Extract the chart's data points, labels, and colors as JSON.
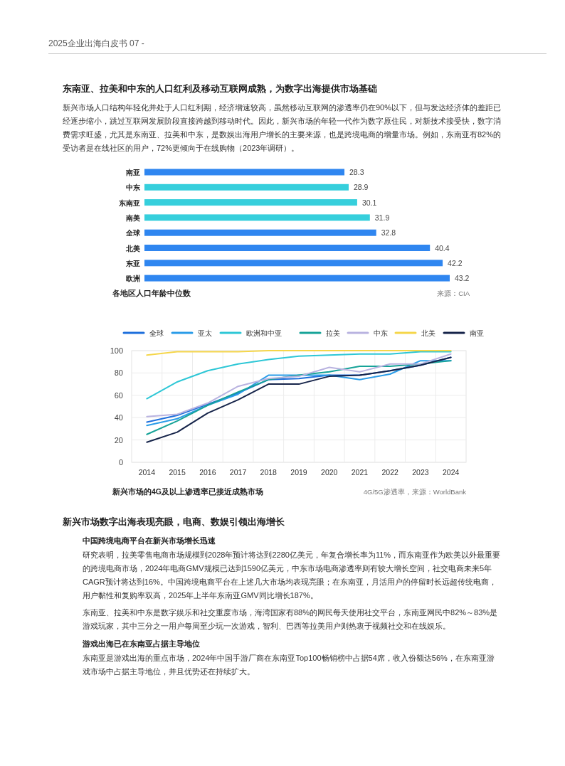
{
  "chart_data": [
    {
      "type": "other",
      "annotations": [
        "2025企业出海白皮书    07 -"
      ]
    },
    {
      "type": "other",
      "title": "东南亚、拉美和中东的人口红利及移动互联网成熟，为数字出海提供市场基础",
      "annotations": [
        "新兴市场人口结构年轻化并处于人口红利期，经济增速较高，虽然移动互联网的渗透率仍在90%以下，但与发达经济体的差距已经逐步缩小，跳过互联网发展阶段直接跨越到移动时代。因此，新兴市场的年轻一代作为数字原住民，对新技术接受快，数字消费需求旺盛，尤其是东南亚、拉美和中东，是数娱出海用户增长的主要来源，也是跨境电商的增量市场。例如，东南亚有82%的受访者是在线社区的用户，72%更倾向于在线购物（2023年调研）。"
      ]
    },
    {
      "type": "bar",
      "orientation": "horizontal",
      "title": "各地区人口年龄中位数",
      "annotations": [
        "来源：CIA"
      ],
      "categories": [
        "南亚",
        "中东",
        "东南亚",
        "南美",
        "全球",
        "北美",
        "东亚",
        "欧洲"
      ],
      "values": [
        28.3,
        28.9,
        30.1,
        31.9,
        32.8,
        40.4,
        42.2,
        43.2
      ],
      "colors": [
        "#2f86f0",
        "#36cfdc",
        "#36cfdc",
        "#36cfdc",
        "#2f86f0",
        "#2f86f0",
        "#2f86f0",
        "#2f86f0"
      ],
      "data_labels": true
    },
    {
      "type": "line",
      "title": "新兴市场的4G及以上渗透率已接近成熟市场",
      "annotations": [
        "4G/5G渗透率，来源：WorldBank"
      ],
      "categories": [
        "2014",
        "2015",
        "2016",
        "2017",
        "2018",
        "2019",
        "2020",
        "2021",
        "2022",
        "2023",
        "2024"
      ],
      "ylim": [
        0,
        100
      ],
      "yticks": [
        0,
        20,
        40,
        60,
        80,
        100
      ],
      "grid": true,
      "legend": "top",
      "series": [
        {
          "name": "全球",
          "color": "#1e6fdc",
          "values": [
            36,
            42,
            52,
            62,
            74,
            75,
            78,
            78,
            82,
            87,
            94
          ]
        },
        {
          "name": "亚太",
          "color": "#2a9ce8",
          "values": [
            33,
            39,
            51,
            61,
            78,
            78,
            78,
            74,
            79,
            91,
            91
          ]
        },
        {
          "name": "欧洲和中亚",
          "color": "#2ec7d6",
          "values": [
            57,
            72,
            82,
            88,
            92,
            95,
            96,
            97,
            97,
            99,
            99
          ]
        },
        {
          "name": "拉美",
          "color": "#17a398",
          "values": [
            25,
            37,
            51,
            63,
            74,
            78,
            81,
            86,
            86,
            88,
            91
          ]
        },
        {
          "name": "中东",
          "color": "#b9b3e0",
          "values": [
            41,
            43,
            53,
            68,
            75,
            77,
            85,
            81,
            88,
            88,
            97
          ]
        },
        {
          "name": "北美",
          "color": "#f5d64a",
          "values": [
            96,
            99,
            99,
            99,
            100,
            100,
            100,
            100,
            100,
            100,
            100
          ]
        },
        {
          "name": "南亚",
          "color": "#16244a",
          "values": [
            18,
            27,
            44,
            56,
            70,
            70,
            77,
            78,
            82,
            87,
            94
          ]
        }
      ]
    },
    {
      "type": "other",
      "title": "新兴市场数字出海表现亮眼，电商、数娱引领出海增长"
    },
    {
      "type": "other",
      "title": "中国跨境电商平台在新兴市场增长迅速",
      "annotations": [
        "研究表明，拉美零售电商市场规模到2028年预计将达到2280亿美元，年复合增长率为11%，而东南亚作为欧美以外最重要的跨境电商市场，2024年电商GMV规模已达到1590亿美元，中东市场电商渗透率则有较大增长空间，社交电商未来5年CAGR预计将达到16%。中国跨境电商平台在上述几大市场均表现亮眼；在东南亚，月活用户的停留时长远超传统电商，用户黏性和复购率双高，2025年上半年东南亚GMV同比增长187%。",
        "东南亚、拉美和中东是数字娱乐和社交重度市场，海湾国家有88%的网民每天使用社交平台，东南亚网民中82%～83%是游戏玩家，其中三分之一用户每周至少玩一次游戏，智利、巴西等拉美用户则热衷于视频社交和在线娱乐。"
      ]
    },
    {
      "type": "other",
      "title": "游戏出海已在东南亚占据主导地位",
      "annotations": [
        "东南亚是游戏出海的重点市场，2024年中国手游厂商在东南亚Top100畅销榜中占据54席，收入份额达56%，在东南亚游戏市场中占据主导地位，并且优势还在持续扩大。"
      ]
    }
  ]
}
